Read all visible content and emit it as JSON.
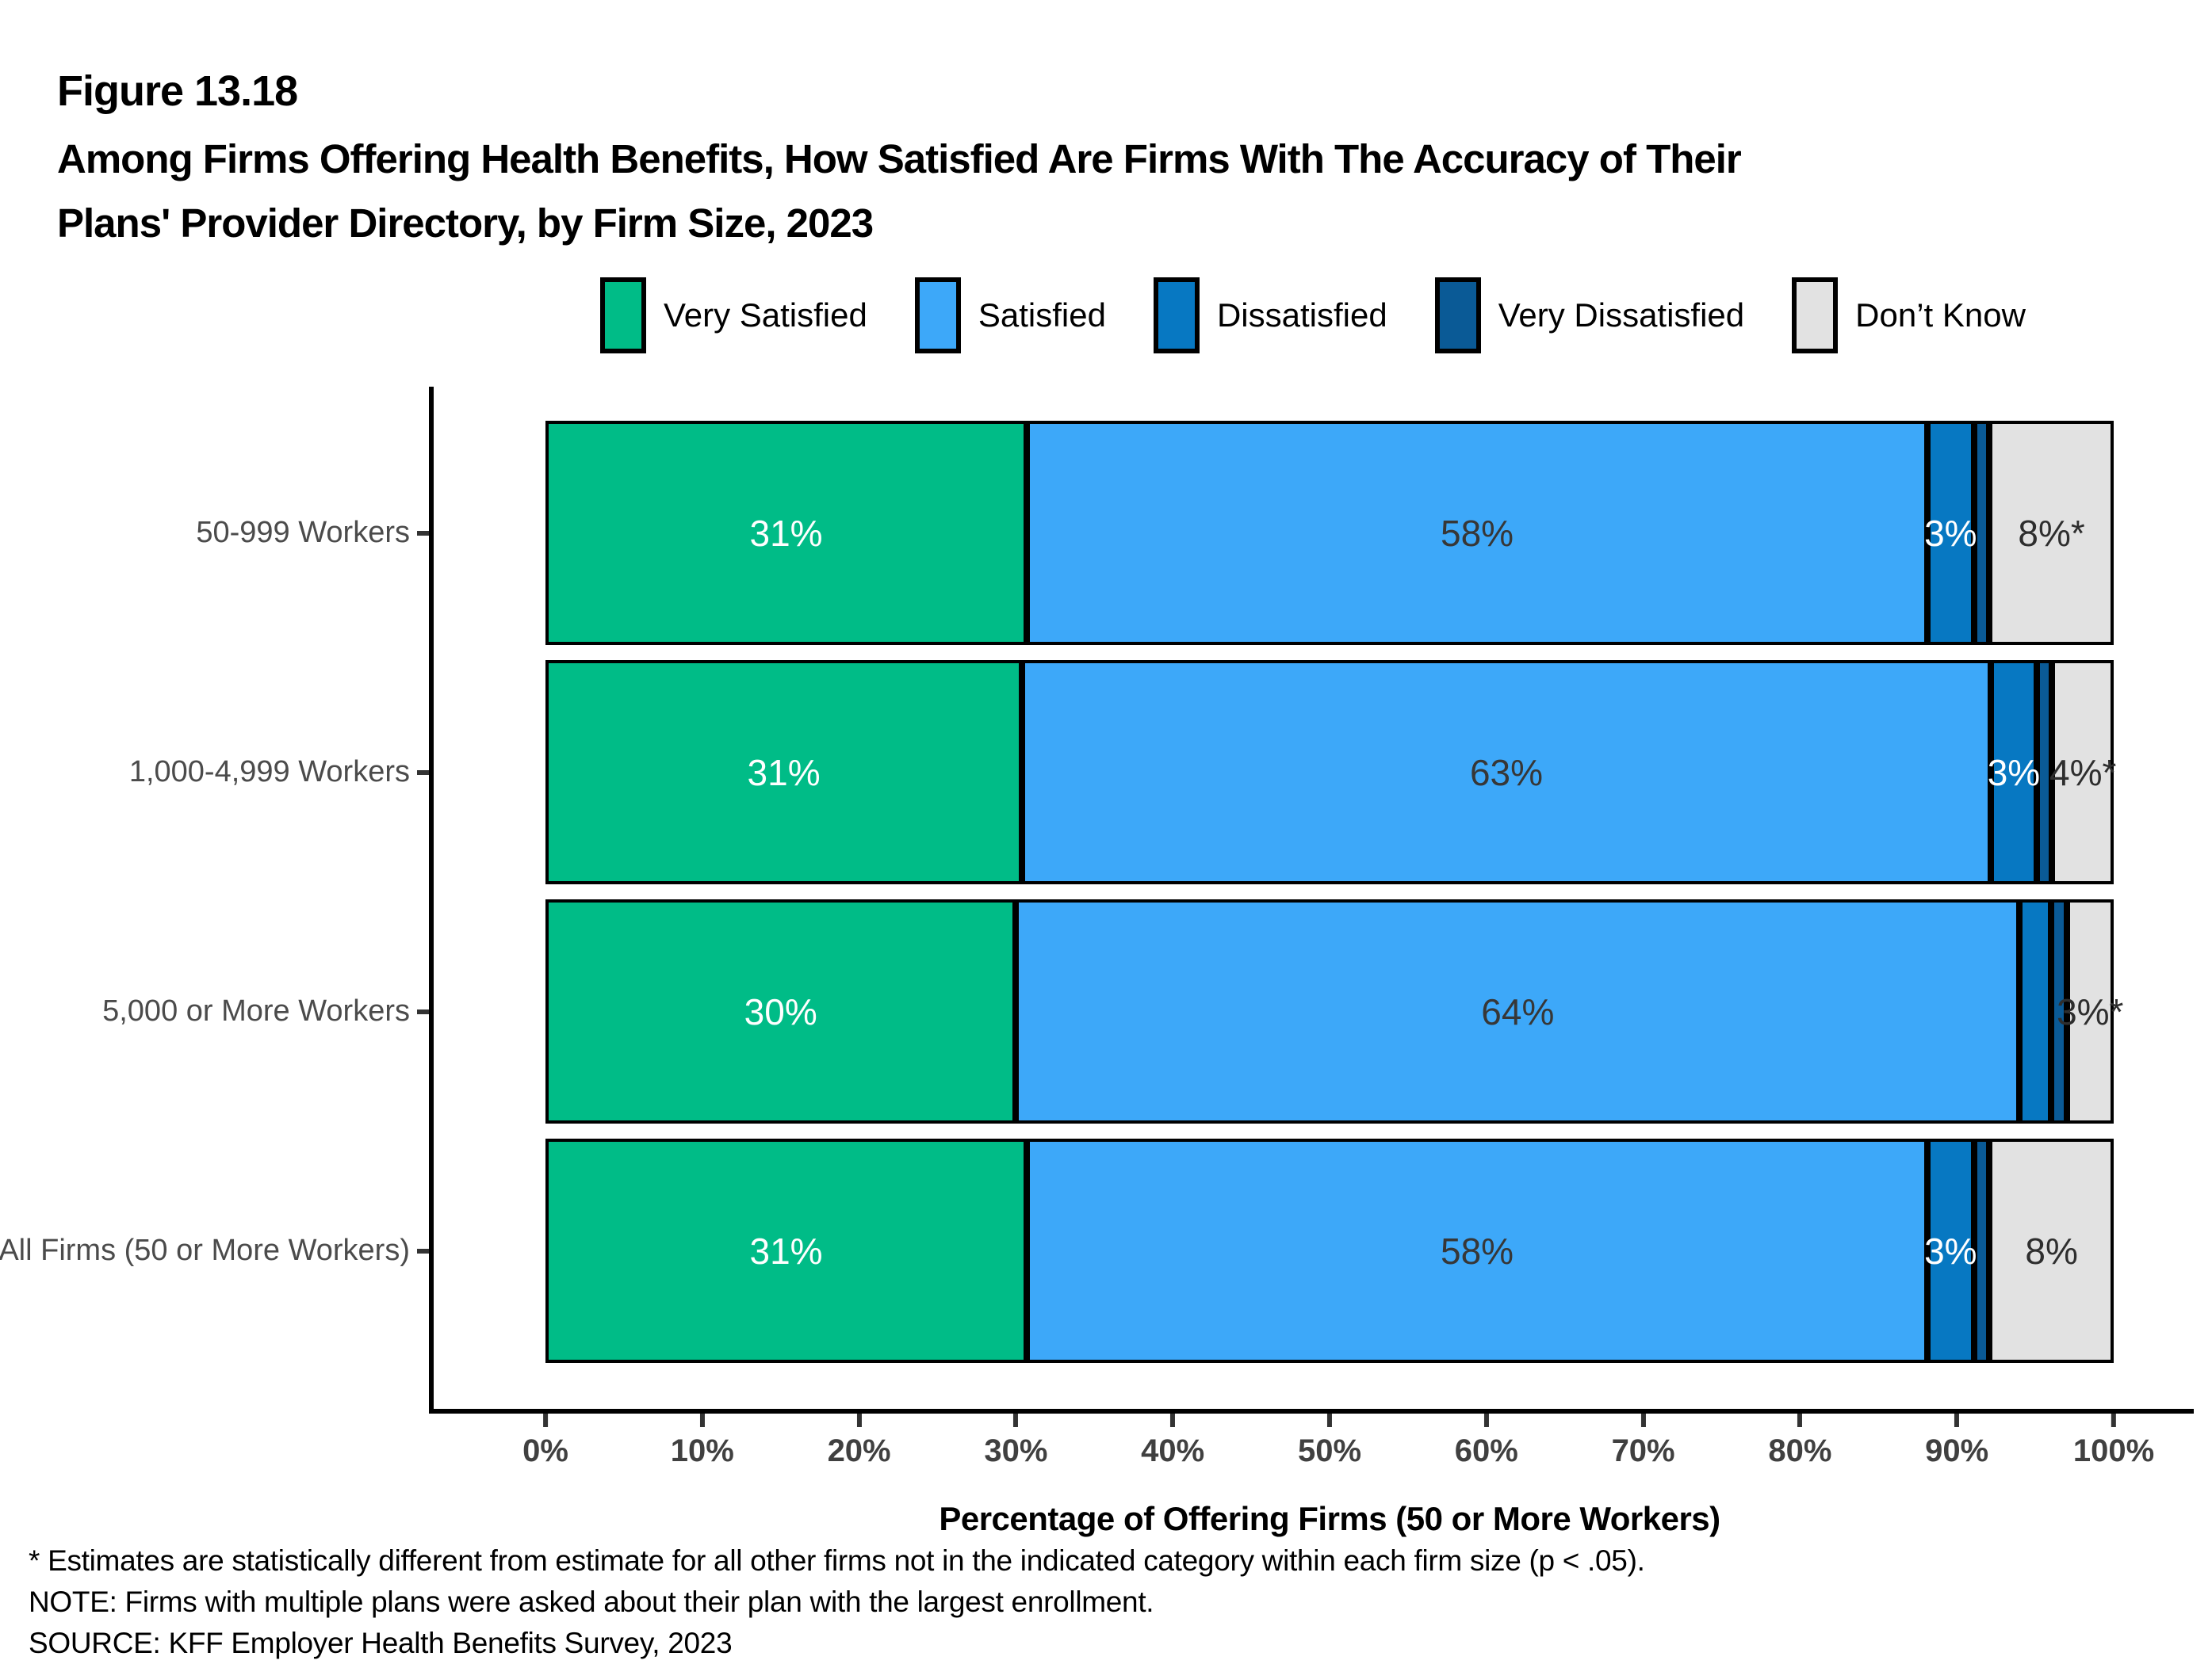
{
  "figure": {
    "label": "Figure 13.18",
    "title_line1": "Among Firms Offering Health Benefits, How Satisfied Are Firms With The Accuracy of Their",
    "title_line2": "Plans' Provider Directory, by Firm Size, 2023"
  },
  "chart_data": {
    "type": "bar",
    "stacked": true,
    "orientation": "horizontal",
    "grid": false,
    "legend_position": "top",
    "xlim": [
      0,
      100
    ],
    "xlabel": "Percentage of Offering Firms (50 or More Workers)",
    "x_ticks": [
      "0%",
      "10%",
      "20%",
      "30%",
      "40%",
      "50%",
      "60%",
      "70%",
      "80%",
      "90%",
      "100%"
    ],
    "categories": [
      "50-999 Workers",
      "1,000-4,999 Workers",
      "5,000 or More Workers",
      "All Firms (50 or More Workers)"
    ],
    "series": [
      {
        "name": "Very Satisfied",
        "color": "#00BC87",
        "label_color": "#FFFFFF",
        "values": [
          31,
          31,
          30,
          31
        ],
        "labels": [
          "31%",
          "31%",
          "30%",
          "31%"
        ]
      },
      {
        "name": "Satisfied",
        "color": "#3DA8F9",
        "label_color": "#373737",
        "values": [
          58,
          63,
          64,
          58
        ],
        "labels": [
          "58%",
          "63%",
          "64%",
          "58%"
        ]
      },
      {
        "name": "Dissatisfied",
        "color": "#0778C2",
        "label_color": "#FFFFFF",
        "values": [
          3,
          3,
          2,
          3
        ],
        "labels": [
          "3%",
          "3%",
          "",
          "3%"
        ]
      },
      {
        "name": "Very Dissatisfied",
        "color": "#0A5A96",
        "label_color": "#FFFFFF",
        "values": [
          1,
          1,
          1,
          1
        ],
        "labels": [
          "",
          "",
          "",
          ""
        ]
      },
      {
        "name": "Don’t Know",
        "color": "#E2E2E2",
        "label_color": "#2E2E2E",
        "values": [
          8,
          4,
          3,
          8
        ],
        "labels": [
          "8%*",
          "4%*",
          "3%*",
          "8%"
        ]
      }
    ],
    "colors": {
      "bar_border": "#000000",
      "axis_line": "#000000",
      "tick_label": "#404040",
      "category_label": "#4B4B4B"
    }
  },
  "footnotes": {
    "star": "* Estimates are statistically different from estimate for all other firms not in the indicated category within each firm size (p < .05).",
    "note": "NOTE: Firms with multiple plans were asked about their plan with the largest enrollment.",
    "source": "SOURCE: KFF Employer Health Benefits Survey, 2023"
  }
}
